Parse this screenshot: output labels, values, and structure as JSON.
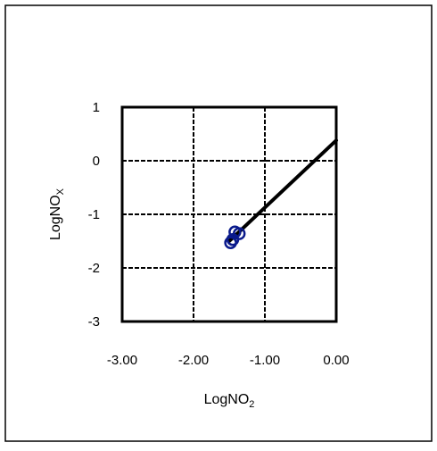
{
  "chart_data": {
    "type": "scatter",
    "title": "",
    "xlabel": {
      "main": "LogNO",
      "sub": "2"
    },
    "ylabel": {
      "main": "LogNO",
      "sub": "X"
    },
    "xlim": [
      -3,
      0
    ],
    "ylim": [
      -3,
      1
    ],
    "x_ticks": [
      -3,
      -2,
      -1,
      0
    ],
    "x_tick_labels": [
      "-3.00",
      "-2.00",
      "-1.00",
      "0.00"
    ],
    "y_ticks": [
      -3,
      -2,
      -1,
      0,
      1
    ],
    "y_tick_labels": [
      "-3",
      "-2",
      "-1",
      "0",
      "1"
    ],
    "grid": true,
    "legend": "none",
    "series": [
      {
        "kind": "points",
        "marker": "open-circle",
        "color": "#0a1a8c",
        "points": [
          {
            "x": -1.48,
            "y": -1.53
          },
          {
            "x": -1.45,
            "y": -1.47
          },
          {
            "x": -1.42,
            "y": -1.33
          },
          {
            "x": -1.36,
            "y": -1.36
          }
        ]
      },
      {
        "kind": "fit-line",
        "color": "#000000",
        "points": [
          {
            "x": -1.5,
            "y": -1.5
          },
          {
            "x": 0.0,
            "y": 0.38
          }
        ]
      }
    ]
  }
}
